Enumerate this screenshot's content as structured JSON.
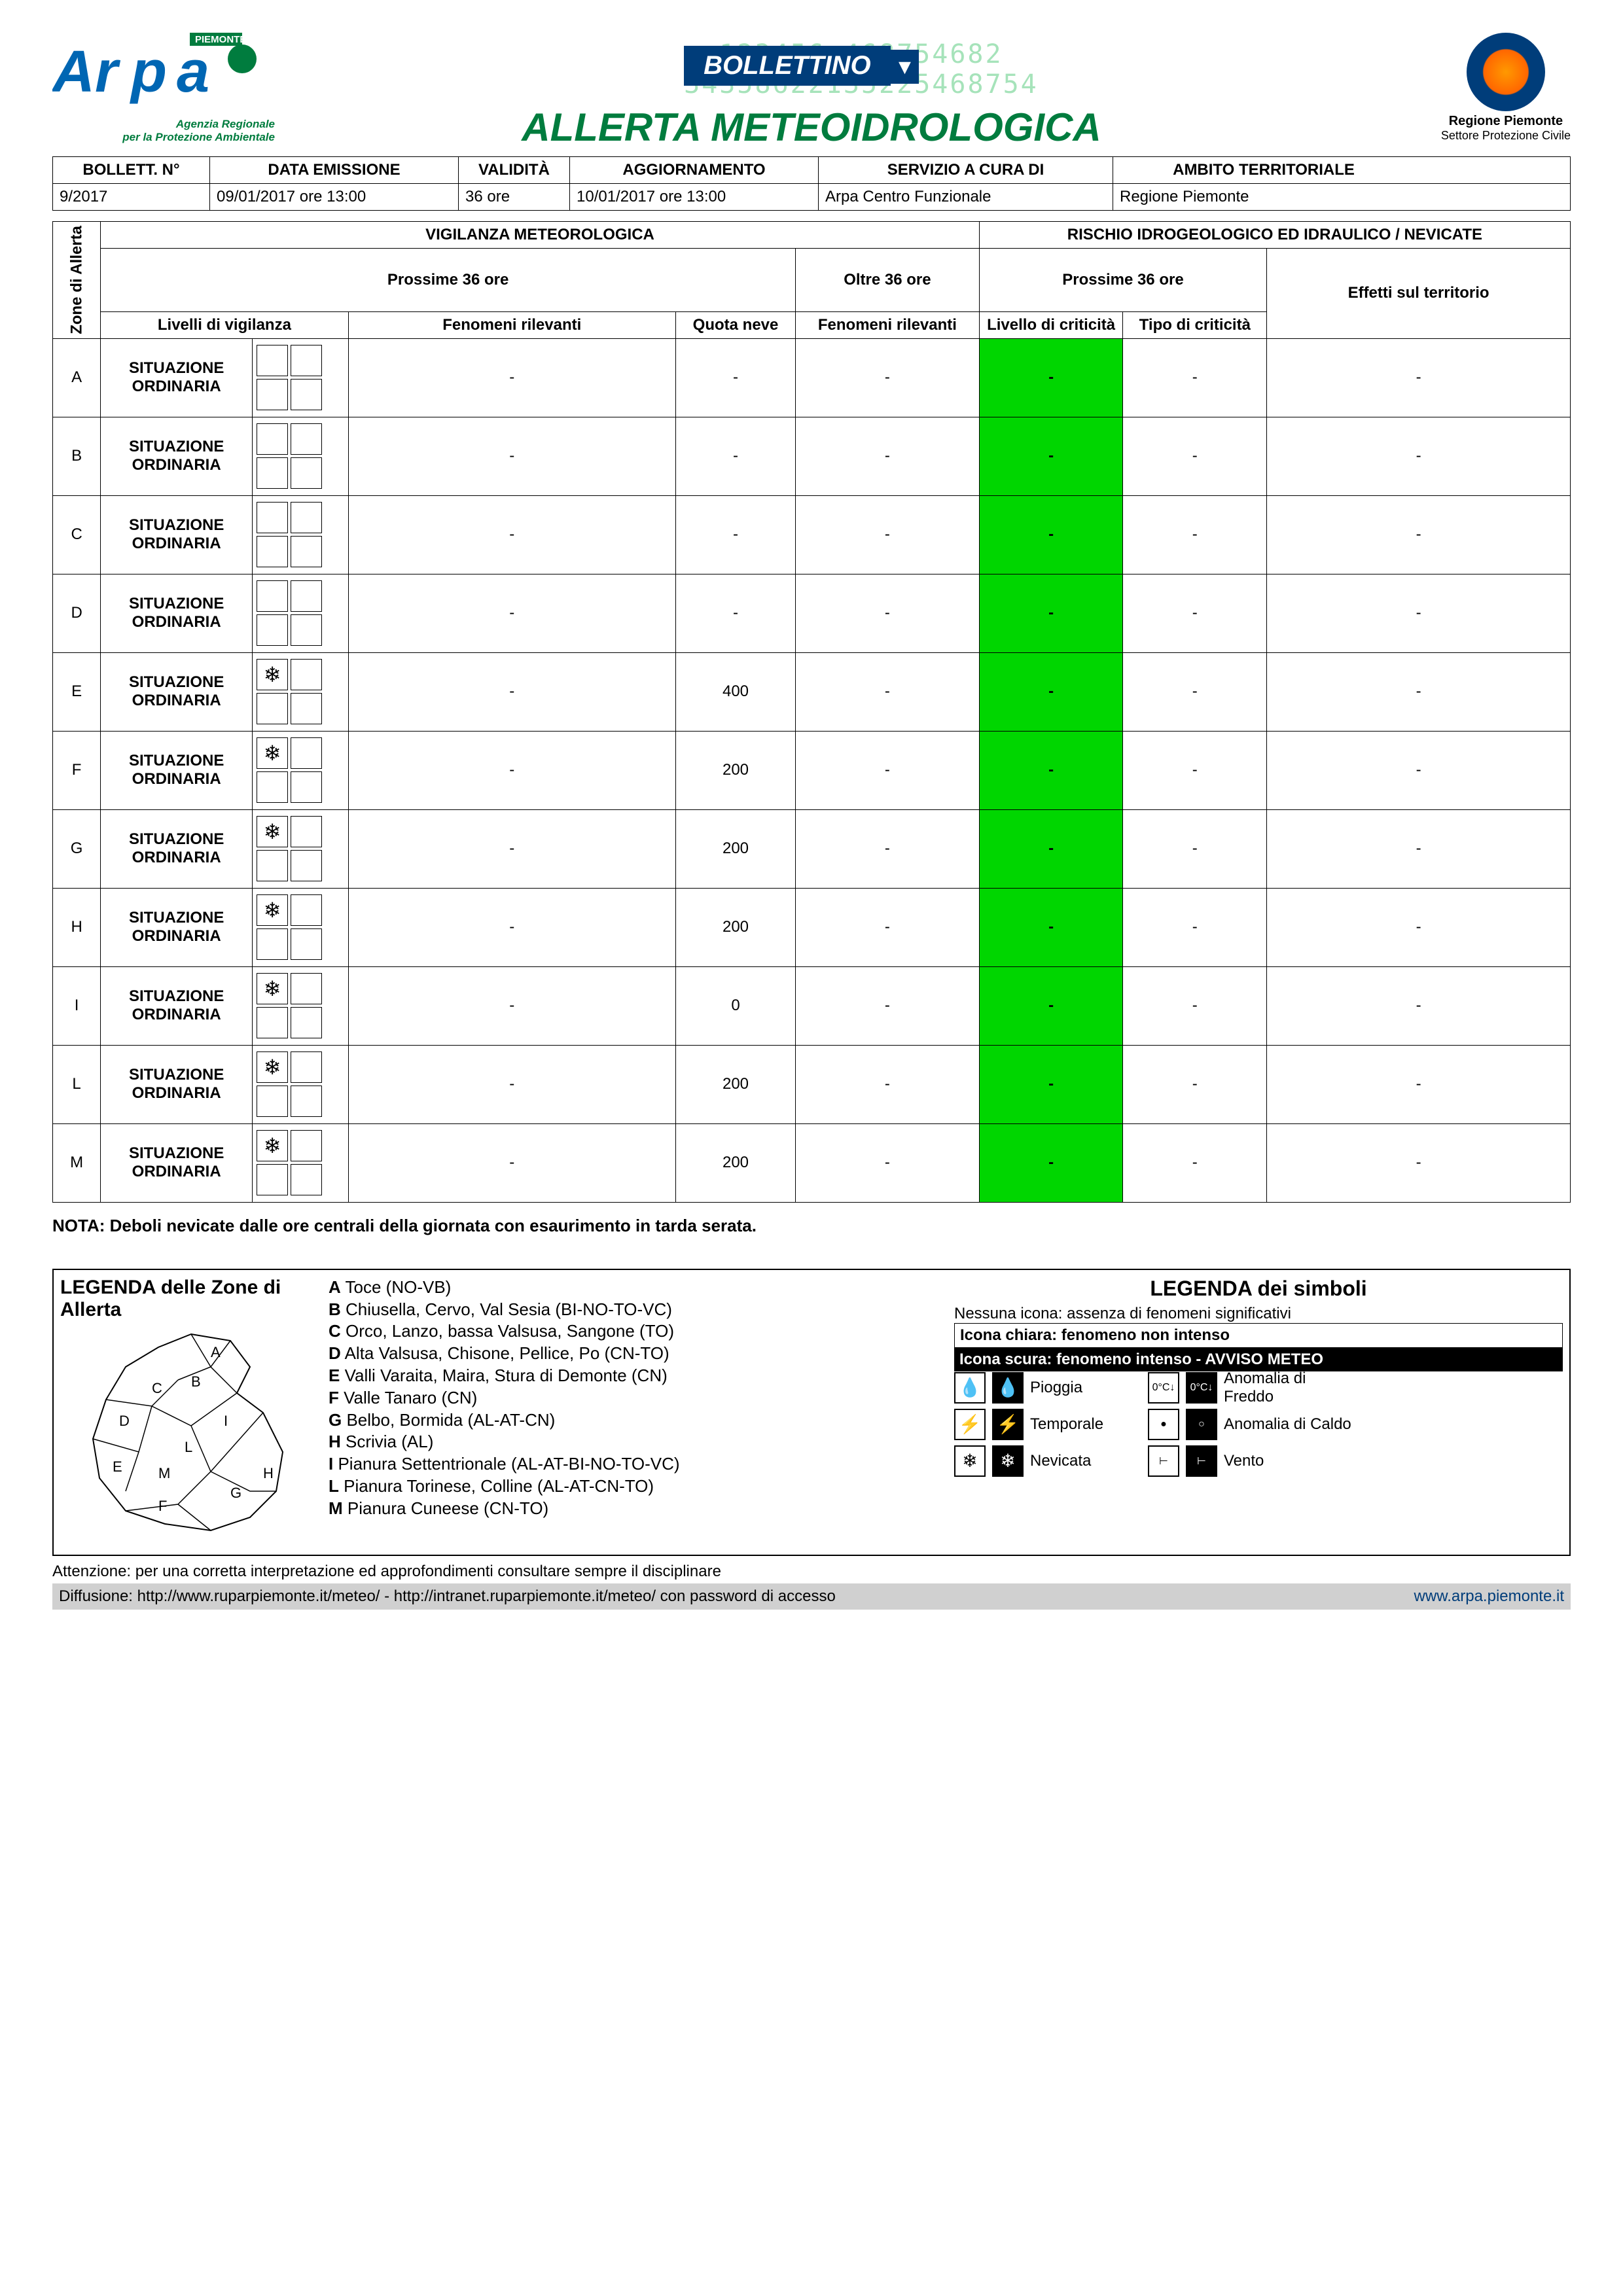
{
  "header": {
    "arpa_region": "PIEMONTE",
    "arpa_sub1": "Agenzia Regionale",
    "arpa_sub2": "per la Protezione Ambientale",
    "bollettino": "BOLLETTINO",
    "title": "ALLERTA METEOIDROLOGICA",
    "pc_title": "Regione Piemonte",
    "pc_sub": "Settore Protezione Civile"
  },
  "info": {
    "headers": [
      "BOLLETT. N°",
      "DATA EMISSIONE",
      "VALIDITÀ",
      "AGGIORNAMENTO",
      "SERVIZIO A CURA DI",
      "AMBITO TERRITORIALE"
    ],
    "values": [
      "9/2017",
      "09/01/2017 ore 13:00",
      "36 ore",
      "10/01/2017 ore 13:00",
      "Arpa Centro Funzionale",
      "Regione Piemonte"
    ],
    "widths": [
      "240px",
      "380px",
      "170px",
      "380px",
      "450px",
      "460px"
    ]
  },
  "table": {
    "zone_header": "Zone di Allerta",
    "vig_title": "VIGILANZA METEOROLOGICA",
    "risk_title": "RISCHIO IDROGEOLOGICO ED IDRAULICO / NEVICATE",
    "next36": "Prossime 36 ore",
    "over36": "Oltre 36 ore",
    "cols": {
      "livelli": "Livelli di vigilanza",
      "fenomeni": "Fenomeni rilevanti",
      "quota": "Quota neve",
      "fenomeni2": "Fenomeni rilevanti",
      "criticita_lvl": "Livello di criticità",
      "criticita_tipo": "Tipo di criticità",
      "effetti": "Effetti sul territorio"
    },
    "rows": [
      {
        "zone": "A",
        "situazione": "SITUAZIONE ORDINARIA",
        "snow": false,
        "fenomeni": "-",
        "quota": "-",
        "fenomeni2": "-",
        "crit": "-",
        "tipo": "-",
        "effetti": "-"
      },
      {
        "zone": "B",
        "situazione": "SITUAZIONE ORDINARIA",
        "snow": false,
        "fenomeni": "-",
        "quota": "-",
        "fenomeni2": "-",
        "crit": "-",
        "tipo": "-",
        "effetti": "-"
      },
      {
        "zone": "C",
        "situazione": "SITUAZIONE ORDINARIA",
        "snow": false,
        "fenomeni": "-",
        "quota": "-",
        "fenomeni2": "-",
        "crit": "-",
        "tipo": "-",
        "effetti": "-"
      },
      {
        "zone": "D",
        "situazione": "SITUAZIONE ORDINARIA",
        "snow": false,
        "fenomeni": "-",
        "quota": "-",
        "fenomeni2": "-",
        "crit": "-",
        "tipo": "-",
        "effetti": "-"
      },
      {
        "zone": "E",
        "situazione": "SITUAZIONE ORDINARIA",
        "snow": true,
        "fenomeni": "-",
        "quota": "400",
        "fenomeni2": "-",
        "crit": "-",
        "tipo": "-",
        "effetti": "-"
      },
      {
        "zone": "F",
        "situazione": "SITUAZIONE ORDINARIA",
        "snow": true,
        "fenomeni": "-",
        "quota": "200",
        "fenomeni2": "-",
        "crit": "-",
        "tipo": "-",
        "effetti": "-"
      },
      {
        "zone": "G",
        "situazione": "SITUAZIONE ORDINARIA",
        "snow": true,
        "fenomeni": "-",
        "quota": "200",
        "fenomeni2": "-",
        "crit": "-",
        "tipo": "-",
        "effetti": "-"
      },
      {
        "zone": "H",
        "situazione": "SITUAZIONE ORDINARIA",
        "snow": true,
        "fenomeni": "-",
        "quota": "200",
        "fenomeni2": "-",
        "crit": "-",
        "tipo": "-",
        "effetti": "-"
      },
      {
        "zone": "I",
        "situazione": "SITUAZIONE ORDINARIA",
        "snow": true,
        "fenomeni": "-",
        "quota": "0",
        "fenomeni2": "-",
        "crit": "-",
        "tipo": "-",
        "effetti": "-"
      },
      {
        "zone": "L",
        "situazione": "SITUAZIONE ORDINARIA",
        "snow": true,
        "fenomeni": "-",
        "quota": "200",
        "fenomeni2": "-",
        "crit": "-",
        "tipo": "-",
        "effetti": "-"
      },
      {
        "zone": "M",
        "situazione": "SITUAZIONE ORDINARIA",
        "snow": true,
        "fenomeni": "-",
        "quota": "200",
        "fenomeni2": "-",
        "crit": "-",
        "tipo": "-",
        "effetti": "-"
      }
    ],
    "crit_color": "#00d600"
  },
  "nota": "NOTA: Deboli nevicate dalle ore centrali della giornata con esaurimento in tarda serata.",
  "legend": {
    "zone_title": "LEGENDA delle Zone di Allerta",
    "zones": [
      {
        "k": "A",
        "t": "Toce (NO-VB)"
      },
      {
        "k": "B",
        "t": "Chiusella, Cervo, Val Sesia (BI-NO-TO-VC)"
      },
      {
        "k": "C",
        "t": "Orco, Lanzo, bassa Valsusa, Sangone (TO)"
      },
      {
        "k": "D",
        "t": "Alta Valsusa, Chisone, Pellice, Po (CN-TO)"
      },
      {
        "k": "E",
        "t": "Valli Varaita, Maira, Stura di Demonte (CN)"
      },
      {
        "k": "F",
        "t": "Valle Tanaro (CN)"
      },
      {
        "k": "G",
        "t": "Belbo, Bormida (AL-AT-CN)"
      },
      {
        "k": "H",
        "t": "Scrivia (AL)"
      },
      {
        "k": "I",
        "t": "Pianura Settentrionale (AL-AT-BI-NO-TO-VC)"
      },
      {
        "k": "L",
        "t": "Pianura Torinese, Colline (AL-AT-CN-TO)"
      },
      {
        "k": "M",
        "t": "Pianura Cuneese (CN-TO)"
      }
    ],
    "sym_title": "LEGENDA dei simboli",
    "none": "Nessuna icona: assenza di fenomeni significativi",
    "light": "Icona chiara: fenomeno non intenso",
    "dark": "Icona scura: fenomeno intenso - AVVISO METEO",
    "symbols": [
      {
        "light": "💧",
        "dark": "💧",
        "label": "Pioggia",
        "light2": "0°C↓",
        "dark2": "0°C↓",
        "label2": "Anomalia di Freddo"
      },
      {
        "light": "⚡",
        "dark": "⚡",
        "label": "Temporale",
        "light2": "●",
        "dark2": "○",
        "label2": "Anomalia di Caldo"
      },
      {
        "light": "❄",
        "dark": "❄",
        "label": "Nevicata",
        "light2": "⊢",
        "dark2": "⊢",
        "label2": "Vento"
      }
    ]
  },
  "footer": {
    "attention": "Attenzione: per una corretta interpretazione ed approfondimenti consultare sempre il disciplinare",
    "diffusion": "Diffusione: http://www.ruparpiemonte.it/meteo/  -  http://intranet.ruparpiemonte.it/meteo/ con password di accesso",
    "link": "www.arpa.piemonte.it"
  }
}
